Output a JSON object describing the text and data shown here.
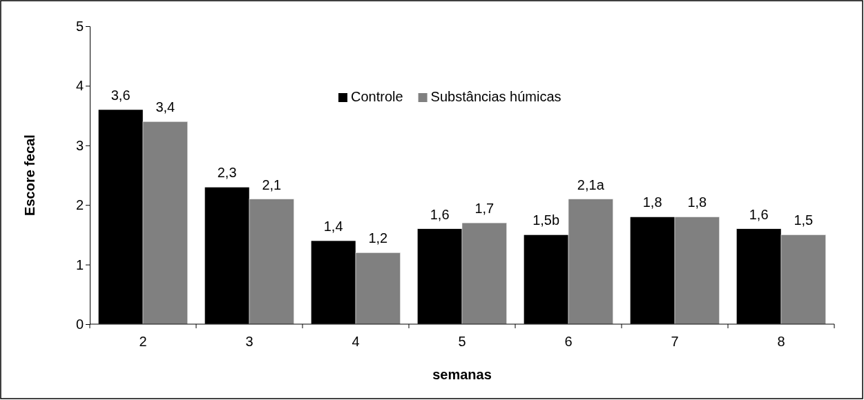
{
  "chart_data": {
    "type": "bar",
    "xlabel": "semanas",
    "ylabel": "Escore fecal",
    "categories": [
      "2",
      "3",
      "4",
      "5",
      "6",
      "7",
      "8"
    ],
    "series": [
      {
        "name": "Controle",
        "color": "#000000",
        "values": [
          3.6,
          2.3,
          1.4,
          1.6,
          1.5,
          1.8,
          1.6
        ],
        "value_labels": [
          "3,6",
          "2,3",
          "1,4",
          "1,6",
          "1,5b",
          "1,8",
          "1,6"
        ]
      },
      {
        "name": "Substâncias húmicas",
        "color": "#808080",
        "values": [
          3.4,
          2.1,
          1.2,
          1.7,
          2.1,
          1.8,
          1.5
        ],
        "value_labels": [
          "3,4",
          "2,1",
          "1,2",
          "1,7",
          "2,1a",
          "1,8",
          "1,5"
        ]
      }
    ],
    "ylim": [
      0,
      5
    ],
    "yticks": [
      0,
      1,
      2,
      3,
      4,
      5
    ],
    "grid": false,
    "legend": "top"
  }
}
